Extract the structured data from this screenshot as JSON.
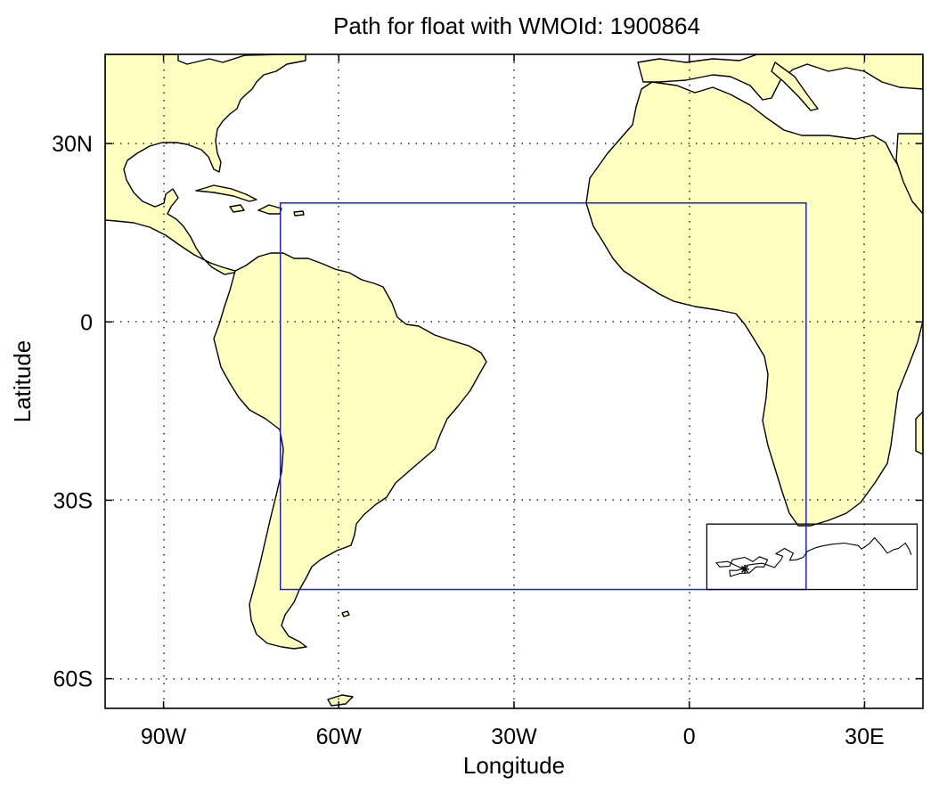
{
  "title": "Path for float with WMOId: 1900864",
  "xlabel": "Longitude",
  "ylabel": "Latitude",
  "x_ticks": [
    {
      "label": "90W",
      "lon": -90
    },
    {
      "label": "60W",
      "lon": -60
    },
    {
      "label": "30W",
      "lon": -30
    },
    {
      "label": "0",
      "lon": 0
    },
    {
      "label": "30E",
      "lon": 30
    }
  ],
  "y_ticks": [
    {
      "label": "30N",
      "lat": 30
    },
    {
      "label": "0",
      "lat": 0
    },
    {
      "label": "30S",
      "lat": -30
    },
    {
      "label": "60S",
      "lat": -60
    }
  ],
  "colors": {
    "land": "#ffffc0",
    "coast": "#000000",
    "region_box": "#1a1aff",
    "track": "#000000",
    "grid": "#000000"
  },
  "chart_data": {
    "type": "map-trajectory",
    "projection": "equirectangular",
    "lon_range": [
      -100,
      40
    ],
    "lat_range": [
      -65,
      45
    ],
    "grid": true,
    "region_box": {
      "lon": [
        -70,
        20
      ],
      "lat": [
        -45,
        20
      ]
    },
    "inset_box": {
      "lon": [
        3,
        39
      ],
      "lat": [
        -45,
        -34
      ]
    },
    "start_marker": "asterisk",
    "start": {
      "lon": 9.5,
      "lat": -41.6
    },
    "track_lonlat": [
      [
        9.5,
        -41.6
      ],
      [
        8.0,
        -41.0
      ],
      [
        6.6,
        -40.3
      ],
      [
        4.6,
        -40.5
      ],
      [
        5.2,
        -41.2
      ],
      [
        6.9,
        -41.1
      ],
      [
        7.4,
        -40.0
      ],
      [
        9.5,
        -39.6
      ],
      [
        10.9,
        -40.3
      ],
      [
        12.0,
        -39.5
      ],
      [
        13.4,
        -40.0
      ],
      [
        12.8,
        -41.2
      ],
      [
        11.4,
        -41.2
      ],
      [
        10.3,
        -42.2
      ],
      [
        8.7,
        -42.3
      ],
      [
        7.0,
        -42.8
      ],
      [
        6.9,
        -41.8
      ],
      [
        8.3,
        -41.8
      ],
      [
        10.0,
        -40.9
      ],
      [
        11.3,
        -40.7
      ],
      [
        12.5,
        -40.6
      ],
      [
        14.6,
        -41.3
      ],
      [
        15.7,
        -40.0
      ],
      [
        16.0,
        -39.4
      ],
      [
        14.8,
        -39.0
      ],
      [
        16.3,
        -38.1
      ],
      [
        17.8,
        -38.9
      ],
      [
        17.2,
        -40.1
      ],
      [
        18.4,
        -40.0
      ],
      [
        19.5,
        -39.6
      ],
      [
        20.2,
        -38.6
      ],
      [
        21.6,
        -38.0
      ],
      [
        22.7,
        -37.7
      ],
      [
        24.4,
        -37.4
      ],
      [
        26.5,
        -37.2
      ],
      [
        28.9,
        -37.6
      ],
      [
        29.5,
        -38.2
      ],
      [
        30.8,
        -37.3
      ],
      [
        31.7,
        -36.3
      ],
      [
        32.8,
        -37.5
      ],
      [
        33.9,
        -38.9
      ],
      [
        35.0,
        -38.3
      ],
      [
        35.8,
        -38.1
      ],
      [
        37.0,
        -37.2
      ],
      [
        37.6,
        -38.2
      ],
      [
        38.0,
        -39.2
      ]
    ]
  }
}
